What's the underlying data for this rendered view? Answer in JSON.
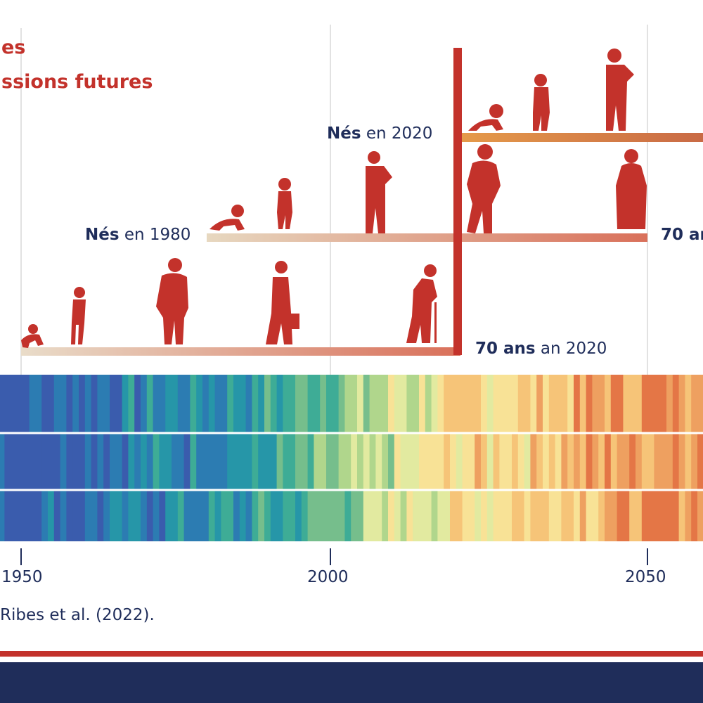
{
  "title": {
    "line1": "es",
    "line2": "ssions futures"
  },
  "generations": [
    {
      "strong": "Nés",
      "rest": " en 2020"
    },
    {
      "strong": "Nés",
      "rest": " en 1980"
    }
  ],
  "age_labels": [
    {
      "strong": "70 ans",
      "rest": " an 2020"
    },
    {
      "strong": "70 an",
      "rest": ""
    }
  ],
  "axis_ticks": [
    "1950",
    "2000",
    "2050"
  ],
  "source": "Ribes et al. (2022).",
  "colors": {
    "figure_red": "#c3322b",
    "navy": "#1f2d5a",
    "stripes_cold": "#3a5cad",
    "stripes_warm": "#e8743a"
  },
  "icons": [
    "baby-crawling-icon",
    "toddler-icon",
    "adult-reading-icon",
    "adult-walking-icon",
    "elder-woman-icon",
    "elder-with-cane-icon",
    "adult-with-briefcase-icon",
    "adult-standing-icon"
  ]
}
